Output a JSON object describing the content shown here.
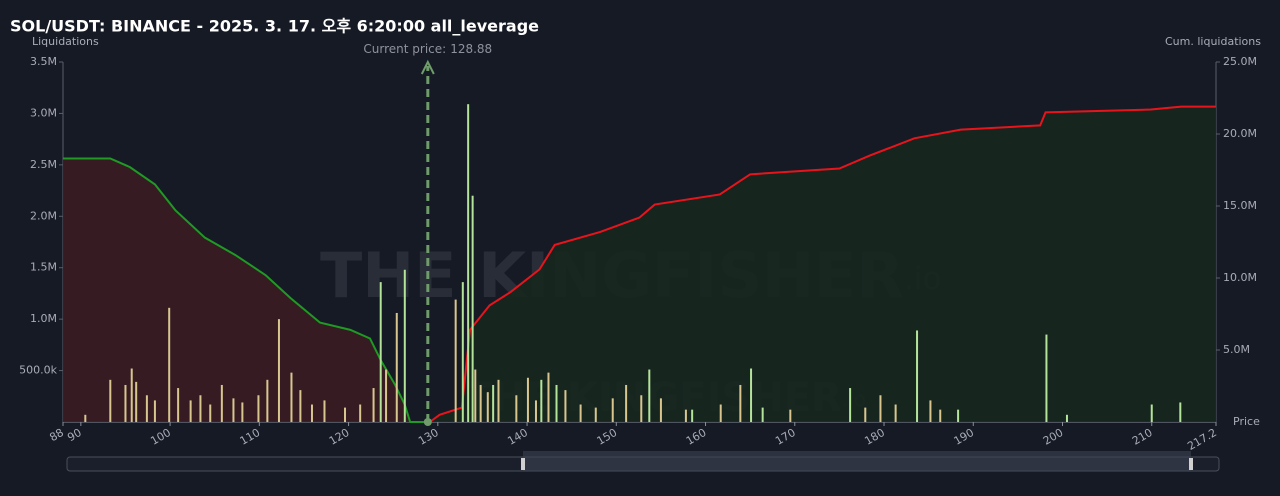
{
  "chart_data": {
    "type": "combo",
    "title": "SOL/USDT: BINANCE - 2025. 3. 17. 오후 6:20:00 all_leverage",
    "y_label": "Liquidations",
    "y2_label": "Cum. liquidations",
    "x_label": "Price",
    "watermark": {
      "text": "THE KINGFISHER",
      "suffix": ".io"
    },
    "current_price": {
      "label": "Current price:",
      "value": 128.88,
      "color": "#6f9c6a"
    },
    "xlim": [
      88,
      217.2
    ],
    "xticks": [
      88,
      90,
      100,
      110,
      120,
      130,
      140,
      150,
      160,
      170,
      180,
      190,
      200,
      210,
      217.2
    ],
    "ylim": [
      0,
      3500000
    ],
    "yticks": [
      {
        "value": 500000,
        "label": "500.0k"
      },
      {
        "value": 1000000,
        "label": "1.0M"
      },
      {
        "value": 1500000,
        "label": "1.5M"
      },
      {
        "value": 2000000,
        "label": "2.0M"
      },
      {
        "value": 2500000,
        "label": "2.5M"
      },
      {
        "value": 3000000,
        "label": "3.0M"
      },
      {
        "value": 3500000,
        "label": "3.5M"
      }
    ],
    "y2lim": [
      0,
      25000000
    ],
    "y2ticks": [
      {
        "value": 5000000,
        "label": "5.0M"
      },
      {
        "value": 10000000,
        "label": "10.0M"
      },
      {
        "value": 15000000,
        "label": "15.0M"
      },
      {
        "value": 20000000,
        "label": "20.0M"
      },
      {
        "value": 25000000,
        "label": "25.0M"
      }
    ],
    "grid": false,
    "series": [
      {
        "type": "bar",
        "color": "#d8c68e",
        "x": [
          90.5,
          93.3,
          95.0,
          95.7,
          96.2,
          97.4,
          98.3,
          99.9,
          100.9,
          102.3,
          103.4,
          104.5,
          105.8,
          107.1,
          108.1,
          109.9,
          110.9,
          112.2,
          113.6,
          114.6,
          115.9,
          117.3,
          119.6,
          121.3,
          122.8,
          124.2,
          125.4,
          132.0,
          134.2,
          134.8,
          135.6,
          136.8,
          138.8,
          140.1,
          141.0,
          142.4,
          144.3,
          146.0,
          147.7,
          149.6,
          151.1,
          152.8,
          155.0,
          157.8,
          161.7,
          163.9,
          169.5,
          177.9,
          179.6,
          181.3,
          185.2,
          186.3
        ],
        "values": [
          70000,
          410000,
          360000,
          520000,
          390000,
          260000,
          210000,
          1110000,
          330000,
          210000,
          260000,
          170000,
          360000,
          230000,
          190000,
          260000,
          410000,
          1000000,
          480000,
          310000,
          170000,
          210000,
          140000,
          170000,
          330000,
          510000,
          1060000,
          1190000,
          510000,
          360000,
          290000,
          410000,
          260000,
          430000,
          210000,
          480000,
          310000,
          170000,
          140000,
          230000,
          360000,
          260000,
          230000,
          120000,
          170000,
          360000,
          120000,
          140000,
          260000,
          170000,
          210000,
          120000
        ]
      },
      {
        "type": "bar",
        "color": "#b4e39a",
        "x": [
          123.6,
          126.3,
          132.8,
          133.4,
          133.9,
          136.2,
          141.6,
          143.3,
          153.7,
          158.5,
          165.1,
          166.4,
          176.2,
          183.7,
          188.3,
          198.2,
          200.5,
          210.0,
          213.2
        ],
        "values": [
          1360000,
          1480000,
          1360000,
          3090000,
          2200000,
          360000,
          410000,
          360000,
          510000,
          120000,
          520000,
          140000,
          330000,
          890000,
          120000,
          850000,
          70000,
          170000,
          190000
        ]
      },
      {
        "type": "line",
        "axis": "y2",
        "color": "#1f9a24",
        "fill": "#3a1c24",
        "x": [
          88,
          93.3,
          95.5,
          98.3,
          100.6,
          103.9,
          107.3,
          110.7,
          113.5,
          116.8,
          120.2,
          122.4,
          123.6,
          125.2,
          126.3,
          126.9,
          128.9
        ],
        "values": [
          18300000,
          18300000,
          17700000,
          16500000,
          14700000,
          12800000,
          11600000,
          10200000,
          8600000,
          6900000,
          6400000,
          5800000,
          4300000,
          2600000,
          1200000,
          0,
          0
        ]
      },
      {
        "type": "line",
        "axis": "y2",
        "color": "#e8141c",
        "fill": "#17271f",
        "x": [
          129.1,
          130.2,
          132.7,
          133.6,
          135.8,
          138.1,
          141.4,
          143.1,
          148.2,
          152.6,
          154.3,
          161.6,
          165.0,
          175.0,
          178.4,
          183.4,
          188.6,
          197.5,
          198.1,
          209.9,
          213.3,
          217.2
        ],
        "values": [
          0,
          500000,
          1000000,
          6400000,
          8100000,
          9000000,
          10600000,
          12300000,
          13200000,
          14200000,
          15100000,
          15800000,
          17200000,
          17600000,
          18500000,
          19700000,
          20300000,
          20600000,
          21500000,
          21700000,
          21900000,
          21900000
        ]
      }
    ]
  }
}
